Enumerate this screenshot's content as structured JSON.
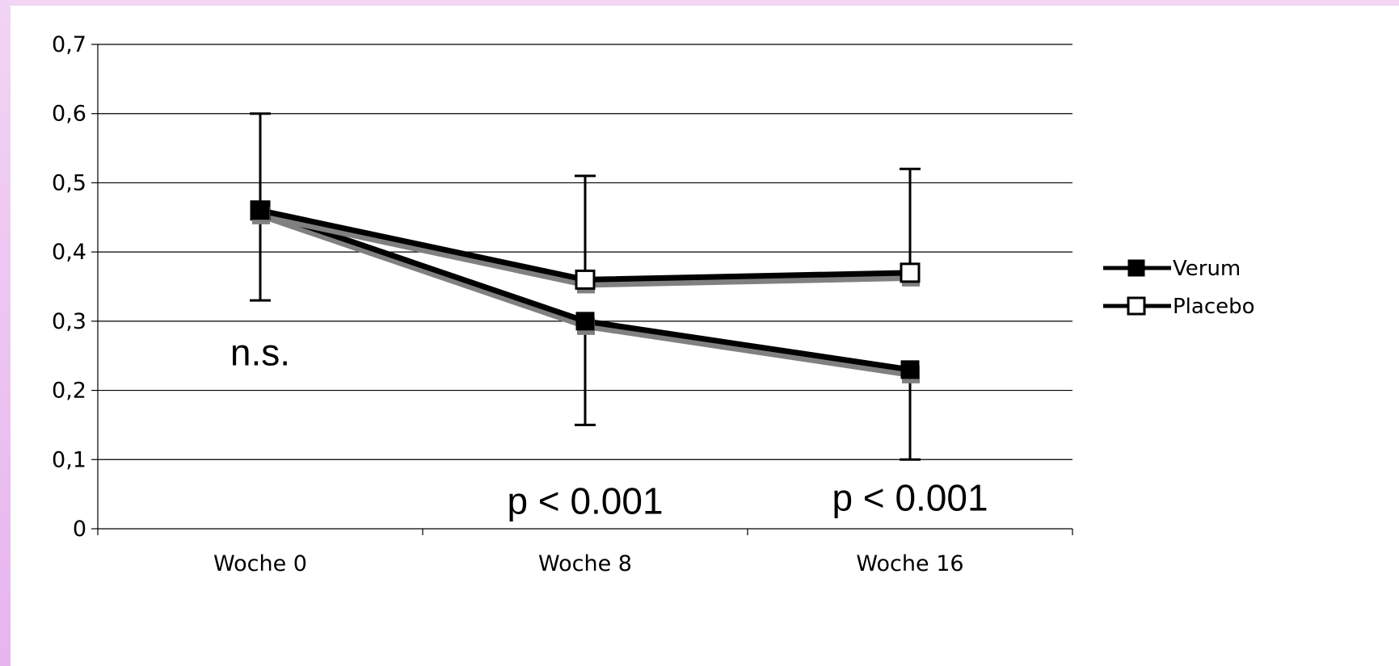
{
  "chart_data": {
    "type": "line",
    "categories": [
      "Woche 0",
      "Woche 8",
      "Woche 16"
    ],
    "ylim": [
      0,
      0.7
    ],
    "yticks": [
      "0",
      "0,1",
      "0,2",
      "0,3",
      "0,4",
      "0,5",
      "0,6",
      "0,7"
    ],
    "ytick_values": [
      0,
      0.1,
      0.2,
      0.3,
      0.4,
      0.5,
      0.6,
      0.7
    ],
    "grid": true,
    "legend_position": "right",
    "series": [
      {
        "name": "Verum",
        "values": [
          0.46,
          0.3,
          0.23
        ],
        "marker": "filled-square",
        "error_low": [
          null,
          0.15,
          0.1
        ],
        "error_high": [
          null,
          null,
          null
        ]
      },
      {
        "name": "Placebo",
        "values": [
          0.46,
          0.36,
          0.37
        ],
        "marker": "open-square",
        "error_low": [
          0.33,
          null,
          null
        ],
        "error_high": [
          0.6,
          0.51,
          0.52
        ]
      }
    ],
    "annotations": [
      {
        "text": "n.s.",
        "category": 0,
        "y": 0.255
      },
      {
        "text": "p < 0.001",
        "category": 1,
        "y": 0.04
      },
      {
        "text": "p < 0.001",
        "category": 2,
        "y": 0.045
      }
    ],
    "colors": {
      "line": "#000000",
      "shadow": "#808080",
      "grid": "#000000"
    }
  }
}
